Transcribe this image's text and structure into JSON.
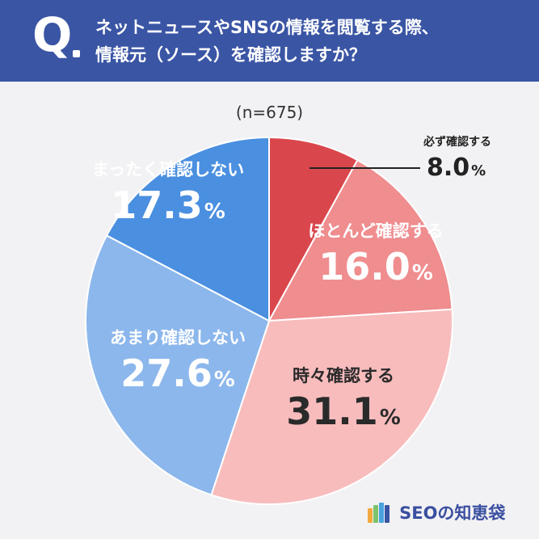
{
  "header": {
    "q_letter": "Q",
    "question_line1": "ネットニュースやSNSの情報を閲覧する際、",
    "question_line2": "情報元（ソース）を確認しますか？"
  },
  "sample_size": "(n=675)",
  "chart_data": {
    "type": "pie",
    "unit": "%",
    "start": "12 o'clock, clockwise",
    "slices": [
      {
        "label": "必ず確認する",
        "value": 8.0,
        "display": "8.0",
        "color": "#d9474d"
      },
      {
        "label": "ほとんど確認する",
        "value": 16.0,
        "display": "16.0",
        "color": "#ef8d8f"
      },
      {
        "label": "時々確認する",
        "value": 31.1,
        "display": "31.1",
        "color": "#f8bcbd"
      },
      {
        "label": "あまり確認しない",
        "value": 27.6,
        "display": "27.6",
        "color": "#8cb7ec"
      },
      {
        "label": "まったく確認しない",
        "value": 17.3,
        "display": "17.3",
        "color": "#4a8fe0"
      }
    ],
    "percent_symbol": "%"
  },
  "logo": {
    "text": "SEOの知恵袋",
    "icon": "bar-stripes-icon",
    "icon_colors": [
      "#f2a93b",
      "#7cc36d",
      "#4aa3df",
      "#3a55a4"
    ]
  }
}
